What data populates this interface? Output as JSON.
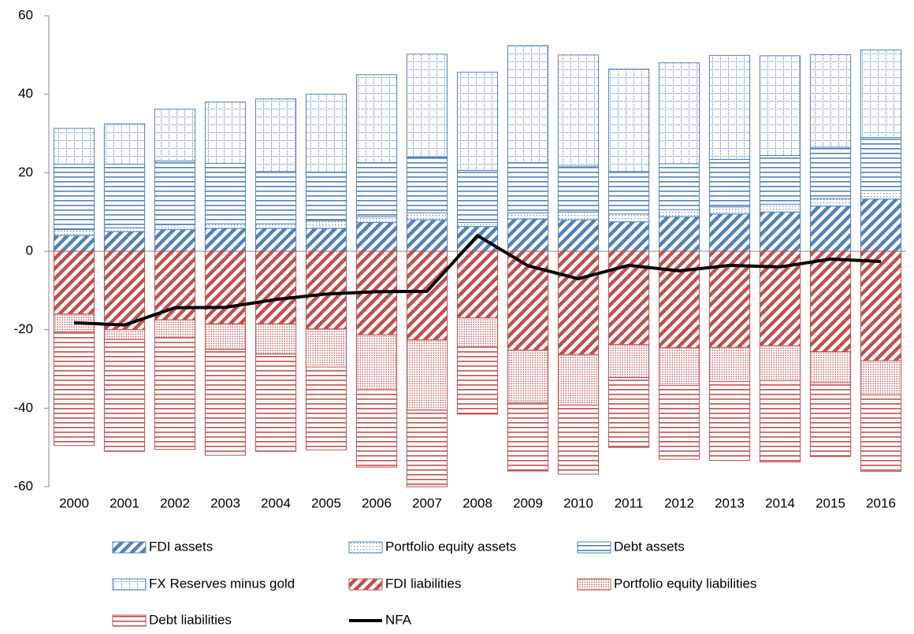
{
  "chart_data": {
    "type": "bar",
    "stacked": true,
    "categories": [
      "2000",
      "2001",
      "2002",
      "2003",
      "2004",
      "2005",
      "2006",
      "2007",
      "2008",
      "2009",
      "2010",
      "2011",
      "2012",
      "2013",
      "2014",
      "2015",
      "2016"
    ],
    "ylim": [
      -60,
      60
    ],
    "yticks": [
      -60,
      -40,
      -20,
      0,
      20,
      40,
      60
    ],
    "series": [
      {
        "name": "FDI assets",
        "type": "bar",
        "color": "#4f81bd",
        "pattern": "diagonal",
        "values": [
          4,
          5,
          5.5,
          5.8,
          5.8,
          5.8,
          7.3,
          8,
          6.3,
          8.2,
          8,
          7.5,
          8.8,
          9.5,
          10,
          11.5,
          13.3
        ]
      },
      {
        "name": "Portfolio equity assets",
        "type": "bar",
        "color": "#4f81bd",
        "pattern": "dots",
        "values": [
          1.5,
          1,
          1.3,
          1.2,
          1.2,
          2,
          1.5,
          1.8,
          1,
          1.6,
          2,
          2,
          1.8,
          1.8,
          2,
          1.9,
          2.2
        ]
      },
      {
        "name": "Debt assets",
        "type": "bar",
        "color": "#4f81bd",
        "pattern": "horizontal",
        "values": [
          16.7,
          16.2,
          16.2,
          15.4,
          13.3,
          12.4,
          13.8,
          14.2,
          13.3,
          12.8,
          11.7,
          10.8,
          11.7,
          12.1,
          12.4,
          13.1,
          13.5
        ]
      },
      {
        "name": "FX Reserves minus gold",
        "type": "bar",
        "color": "#4f81bd",
        "pattern": "grid",
        "values": [
          9.1,
          10.3,
          13.2,
          15.6,
          18.5,
          19.8,
          22.4,
          26.2,
          25,
          29.8,
          28.3,
          26.1,
          25.7,
          26.5,
          25.4,
          23.6,
          22.3
        ]
      },
      {
        "name": "FDI liabilities",
        "type": "bar",
        "color": "#c0504d",
        "pattern": "diagonal",
        "values": [
          -16,
          -20,
          -17.5,
          -18.5,
          -18.5,
          -19.8,
          -21.3,
          -22.6,
          -17,
          -25.2,
          -26.3,
          -23.8,
          -24.6,
          -24.5,
          -24.1,
          -25.6,
          -27.9
        ]
      },
      {
        "name": "Portfolio equity liabilities",
        "type": "bar",
        "color": "#c0504d",
        "pattern": "dense-dots",
        "values": [
          -4.5,
          -2.5,
          -4.5,
          -6.5,
          -7.7,
          -9.7,
          -14,
          -17.9,
          -7.4,
          -13.3,
          -12.9,
          -8.4,
          -9.6,
          -8.7,
          -8.9,
          -7.9,
          -8.7
        ]
      },
      {
        "name": "Debt liabilities",
        "type": "bar",
        "color": "#c0504d",
        "pattern": "horizontal",
        "values": [
          -29,
          -28.5,
          -28.5,
          -27,
          -24.8,
          -21.1,
          -19.7,
          -19.5,
          -17.1,
          -17.5,
          -17.6,
          -17.8,
          -18.8,
          -20.1,
          -20.7,
          -18.8,
          -19.5
        ]
      },
      {
        "name": "NFA",
        "type": "line",
        "color": "#000000",
        "values": [
          -18.2,
          -18.8,
          -14.4,
          -14.3,
          -12.3,
          -10.9,
          -10.3,
          -10.2,
          4,
          -3.7,
          -7,
          -3.6,
          -5,
          -3.6,
          -4,
          -2,
          -2.6
        ]
      }
    ]
  }
}
